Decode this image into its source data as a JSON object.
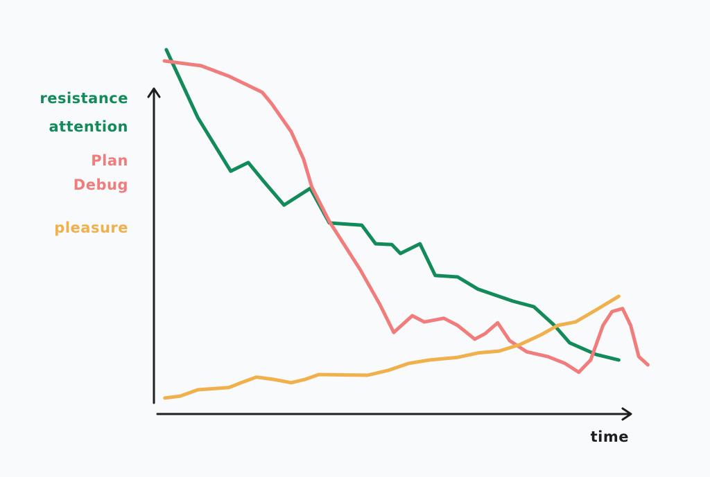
{
  "chart_data": {
    "type": "line",
    "x_label": "time",
    "xlim": [
      0,
      105
    ],
    "ylim": [
      0,
      100
    ],
    "series": [
      {
        "labels": [
          "resistance",
          "attention"
        ],
        "color": "#138a5a",
        "x": [
          2.6,
          9.2,
          16.1,
          19.8,
          23.0,
          27.3,
          32.8,
          36.8,
          43.6,
          46.5,
          49.9,
          51.7,
          55.8,
          59.0,
          63.7,
          68.0,
          75.3,
          79.7,
          84.0,
          87.2,
          92.7,
          97.5
        ],
        "values": [
          97.8,
          79.6,
          65.2,
          67.5,
          62.5,
          56.1,
          60.6,
          51.3,
          50.7,
          45.7,
          45.5,
          43.1,
          45.7,
          37.2,
          36.8,
          33.5,
          30.3,
          28.8,
          23.8,
          19.1,
          16.0,
          14.5
        ]
      },
      {
        "labels": [
          "Plan",
          "Debug"
        ],
        "color": "#f07c7c",
        "x": [
          2.2,
          9.9,
          15.7,
          19.3,
          22.7,
          24.7,
          28.8,
          31.4,
          33.1,
          36.8,
          43.3,
          47.4,
          50.3,
          54.2,
          56.7,
          60.8,
          63.7,
          67.3,
          69.5,
          72.1,
          74.6,
          78.2,
          82.6,
          86.2,
          89.1,
          91.6,
          94.2,
          96.1,
          98.3,
          100.0,
          101.7,
          103.6
        ],
        "values": [
          94.8,
          93.5,
          90.7,
          88.5,
          86.4,
          83.3,
          75.8,
          68.4,
          61.0,
          51.7,
          38.7,
          29.4,
          21.9,
          26.4,
          24.7,
          25.7,
          23.8,
          20.1,
          21.6,
          24.5,
          19.7,
          16.7,
          15.4,
          13.6,
          11.2,
          14.5,
          23.8,
          27.5,
          28.3,
          23.8,
          15.4,
          13.2
        ]
      },
      {
        "labels": [
          "pleasure"
        ],
        "color": "#f0b04c",
        "x": [
          2.3,
          5.5,
          9.2,
          15.7,
          18.3,
          21.5,
          25.1,
          28.8,
          31.7,
          34.6,
          44.8,
          49.1,
          53.5,
          57.8,
          63.7,
          68.0,
          72.4,
          76.7,
          81.1,
          84.7,
          88.4,
          92.7,
          97.5
        ],
        "values": [
          4.3,
          4.8,
          6.5,
          7.1,
          8.4,
          9.9,
          9.3,
          8.4,
          9.3,
          10.6,
          10.4,
          11.7,
          13.6,
          14.5,
          15.2,
          16.4,
          16.9,
          18.6,
          21.2,
          23.8,
          24.7,
          27.9,
          31.6
        ]
      }
    ]
  }
}
